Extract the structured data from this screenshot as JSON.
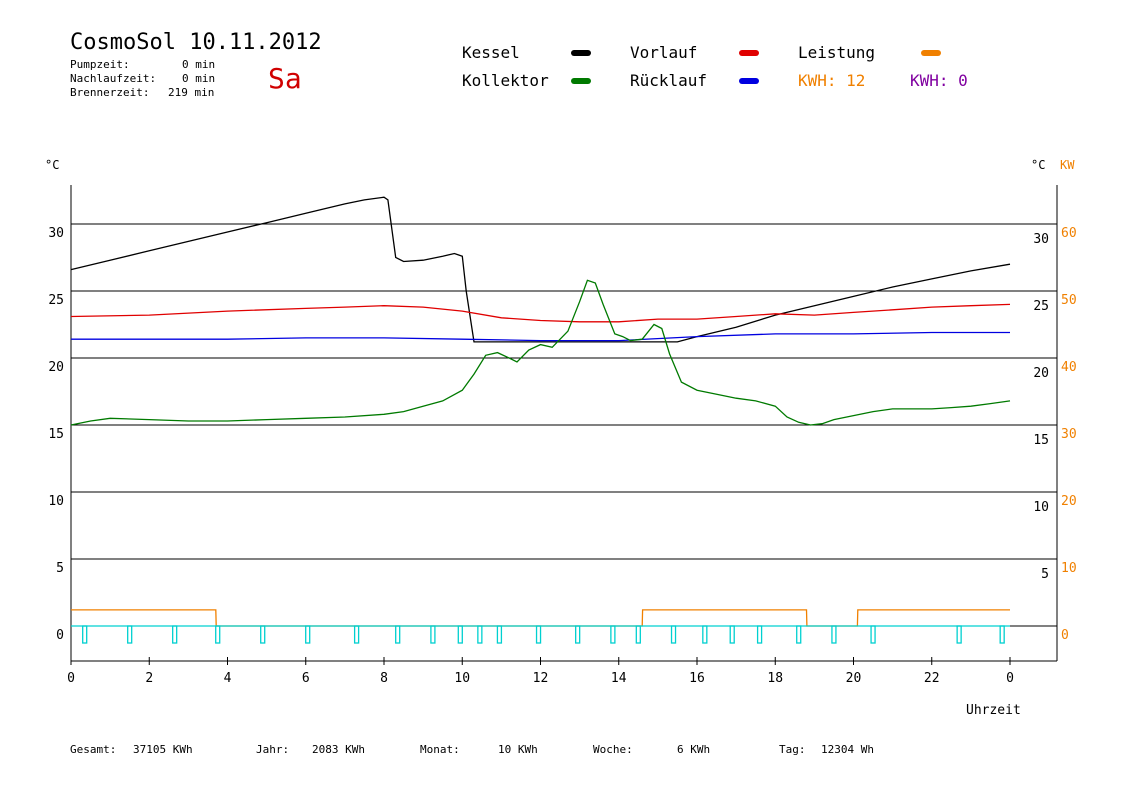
{
  "header": {
    "title": "CosmoSol 10.11.2012",
    "day": "Sa",
    "stats": [
      {
        "label": "Pumpzeit:",
        "value": "0 min"
      },
      {
        "label": "Nachlaufzeit:",
        "value": "0 min"
      },
      {
        "label": "Brennerzeit:",
        "value": "219 min"
      }
    ]
  },
  "legend": {
    "kessel": "Kessel",
    "kollektor": "Kollektor",
    "vorlauf": "Vorlauf",
    "ruecklauf": "Rücklauf",
    "leistung": "Leistung",
    "kwh_orange": "KWH: 12",
    "kwh_purple": "KWH: 0"
  },
  "colors": {
    "kessel": "#000000",
    "kollektor": "#007a00",
    "vorlauf": "#e00000",
    "ruecklauf": "#0000e0",
    "leistung": "#f08000",
    "pumpe": "#00d0d0",
    "kwh_purple": "#8000a0"
  },
  "footer": {
    "gesamt_label": "Gesamt:",
    "gesamt_value": "37105 KWh",
    "jahr_label": "Jahr:",
    "jahr_value": "2083 KWh",
    "monat_label": "Monat:",
    "monat_value": "10 KWh",
    "woche_label": "Woche:",
    "woche_value": "6 KWh",
    "tag_label": "Tag:",
    "tag_value": "12304 Wh"
  },
  "chart_data": {
    "type": "line",
    "xlabel": "Uhrzeit",
    "ylabel_left": "°C",
    "ylabel_right": "°C",
    "ylabel_right2": "KW",
    "x_ticks": [
      "0",
      "2",
      "4",
      "6",
      "8",
      "10",
      "12",
      "14",
      "16",
      "18",
      "20",
      "22",
      "0"
    ],
    "y_left_ticks": [
      "0",
      "5",
      "10",
      "15",
      "20",
      "25",
      "30"
    ],
    "y_right_ticks": [
      "5",
      "10",
      "15",
      "20",
      "25",
      "30"
    ],
    "y_kw_ticks": [
      "0",
      "10",
      "20",
      "30",
      "40",
      "50",
      "60"
    ],
    "xlim": [
      0,
      24
    ],
    "ylim": [
      -2,
      33
    ],
    "grid": true,
    "series": [
      {
        "name": "Kessel",
        "color_key": "kessel",
        "x": [
          0,
          1,
          2,
          3,
          4,
          5,
          6,
          7,
          7.5,
          8,
          8.1,
          8.3,
          8.5,
          9,
          9.5,
          9.8,
          10,
          10.1,
          10.3,
          10.5,
          11,
          12,
          13,
          14,
          15,
          15.5,
          16,
          17,
          18,
          19,
          20,
          21,
          22,
          23,
          24
        ],
        "y": [
          26.6,
          27.3,
          28.0,
          28.7,
          29.4,
          30.1,
          30.8,
          31.5,
          31.8,
          32.0,
          31.8,
          27.5,
          27.2,
          27.3,
          27.6,
          27.8,
          27.6,
          25.0,
          21.2,
          21.2,
          21.2,
          21.2,
          21.2,
          21.2,
          21.2,
          21.2,
          21.6,
          22.3,
          23.2,
          23.9,
          24.6,
          25.3,
          25.9,
          26.5,
          27.0
        ]
      },
      {
        "name": "Vorlauf",
        "color_key": "vorlauf",
        "x": [
          0,
          2,
          4,
          6,
          7,
          8,
          9,
          10,
          11,
          12,
          13,
          14,
          15,
          16,
          17,
          18,
          19,
          20,
          21,
          22,
          23,
          24
        ],
        "y": [
          23.1,
          23.2,
          23.5,
          23.7,
          23.8,
          23.9,
          23.8,
          23.5,
          23.0,
          22.8,
          22.7,
          22.7,
          22.9,
          22.9,
          23.1,
          23.3,
          23.2,
          23.4,
          23.6,
          23.8,
          23.9,
          24.0
        ]
      },
      {
        "name": "Rücklauf",
        "color_key": "ruecklauf",
        "x": [
          0,
          2,
          4,
          6,
          8,
          10,
          12,
          14,
          16,
          18,
          20,
          22,
          24
        ],
        "y": [
          21.4,
          21.4,
          21.4,
          21.5,
          21.5,
          21.4,
          21.3,
          21.3,
          21.6,
          21.8,
          21.8,
          21.9,
          21.9
        ]
      },
      {
        "name": "Kollektor",
        "color_key": "kollektor",
        "x": [
          0,
          0.5,
          1,
          2,
          3,
          4,
          5,
          6,
          7,
          8,
          8.5,
          9,
          9.5,
          10,
          10.3,
          10.6,
          10.9,
          11.2,
          11.4,
          11.7,
          12,
          12.3,
          12.7,
          13,
          13.2,
          13.4,
          13.6,
          13.9,
          14.1,
          14.3,
          14.6,
          14.9,
          15.1,
          15.3,
          15.6,
          16,
          16.5,
          17,
          17.5,
          18,
          18.3,
          18.6,
          18.9,
          19.2,
          19.5,
          20,
          20.5,
          21,
          21.5,
          22,
          22.5,
          23,
          23.5,
          24
        ],
        "y": [
          15.0,
          15.3,
          15.5,
          15.4,
          15.3,
          15.3,
          15.4,
          15.5,
          15.6,
          15.8,
          16.0,
          16.4,
          16.8,
          17.6,
          18.8,
          20.2,
          20.4,
          20.0,
          19.7,
          20.6,
          21.0,
          20.8,
          22.0,
          24.2,
          25.8,
          25.6,
          24.0,
          21.8,
          21.6,
          21.3,
          21.4,
          22.5,
          22.2,
          20.3,
          18.2,
          17.6,
          17.3,
          17.0,
          16.8,
          16.4,
          15.6,
          15.2,
          15.0,
          15.1,
          15.4,
          15.7,
          16.0,
          16.2,
          16.2,
          16.2,
          16.3,
          16.4,
          16.6,
          16.8
        ]
      }
    ],
    "leistung_kw": {
      "name": "Leistung",
      "color_key": "leistung",
      "x": [
        0,
        3.7,
        3.71,
        14.6,
        14.61,
        18.8,
        18.81,
        20.1,
        20.11,
        24
      ],
      "y": [
        1.2,
        1.2,
        0,
        0,
        1.2,
        1.2,
        0,
        0,
        1.2,
        1.2
      ]
    },
    "pump_pulses": [
      0.35,
      1.5,
      2.65,
      3.75,
      4.9,
      6.05,
      7.3,
      8.35,
      9.25,
      9.95,
      10.45,
      10.95,
      11.95,
      12.95,
      13.85,
      14.5,
      15.4,
      16.2,
      16.9,
      17.6,
      18.6,
      19.5,
      20.5,
      22.7,
      23.8
    ]
  }
}
